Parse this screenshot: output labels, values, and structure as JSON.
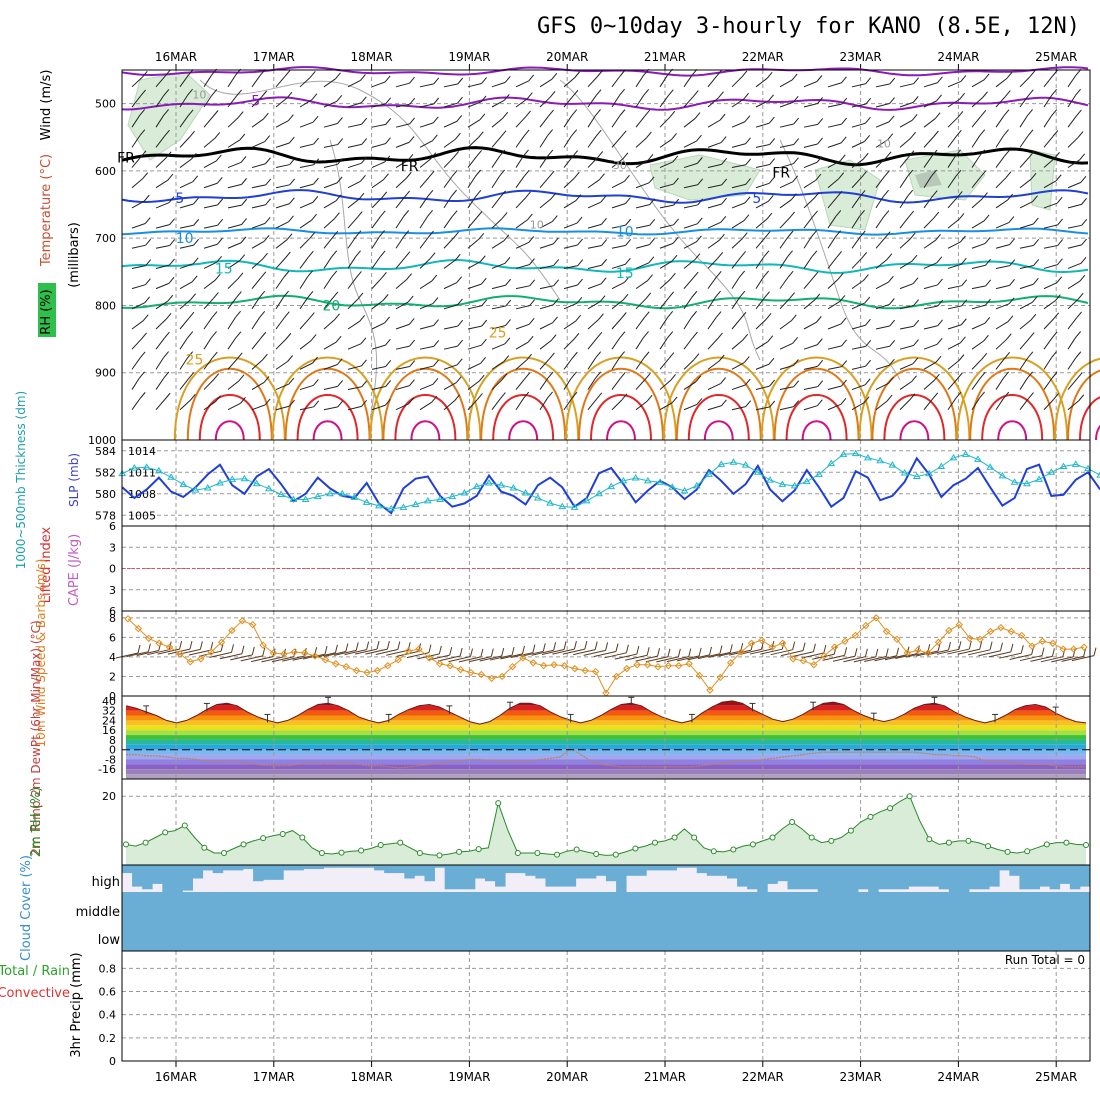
{
  "title": "GFS 0~10day 3-hourly for KANO (8.5E, 12N)",
  "dates": [
    "16MAR",
    "17MAR",
    "18MAR",
    "19MAR",
    "20MAR",
    "21MAR",
    "22MAR",
    "23MAR",
    "24MAR",
    "25MAR"
  ],
  "colors": {
    "purple": "#8b1ab8",
    "black": "#000000",
    "blue": "#1f3fd6",
    "lightblue": "#1a8fe0",
    "cyan": "#10b8b8",
    "teal": "#10b070",
    "gold": "#d8a020",
    "orange": "#e07818",
    "red": "#e02828",
    "magenta": "#d0108a",
    "rh_fill": "#d8ecd8",
    "slp": "#20b8c8",
    "thickness": "#1f3fd6",
    "wind": "#e09020",
    "rh2m": "#2a8a2a",
    "cloud": "#6aaed6",
    "cloud_bg": "#f2eef8"
  },
  "chart_data": [
    {
      "panel": "upper-air",
      "type": "contour",
      "ylabel": "(millibars)",
      "side_labels": [
        "Wind (m/s)",
        "Temperature (°C)",
        "RH (%)"
      ],
      "y_ticks": [
        500,
        600,
        700,
        800,
        900,
        1000
      ],
      "ylim": [
        1000,
        450
      ],
      "contours": [
        {
          "label": "-5",
          "color": "purple",
          "levels": [
            {
              "p": 452,
              "x": 0
            },
            {
              "p": 452,
              "x": 10
            }
          ]
        },
        {
          "label": "FR",
          "color": "black",
          "levels": [
            {
              "p": 582,
              "x": 0
            },
            {
              "p": 572,
              "x": 3
            },
            {
              "p": 590,
              "x": 5
            },
            {
              "p": 598,
              "x": 8
            },
            {
              "p": 570,
              "x": 10
            }
          ]
        },
        {
          "label": "5",
          "color": "blue",
          "p": 638
        },
        {
          "label": "10",
          "color": "lightblue",
          "p": 690
        },
        {
          "label": "15",
          "color": "cyan",
          "p": 742
        },
        {
          "label": "20",
          "color": "teal",
          "p": 795
        },
        {
          "label": "25",
          "color": "gold",
          "p": 858
        }
      ],
      "contour_labels": [
        {
          "text": "-5",
          "day": 1.3,
          "p": 495,
          "color": "purple"
        },
        {
          "text": "FR",
          "day": 0.0,
          "p": 580,
          "color": "black"
        },
        {
          "text": "FR",
          "day": 2.9,
          "p": 593,
          "color": "black"
        },
        {
          "text": "FR",
          "day": 6.7,
          "p": 602,
          "color": "black"
        },
        {
          "text": "5",
          "day": 0.55,
          "p": 640,
          "color": "blue"
        },
        {
          "text": "5",
          "day": 6.45,
          "p": 640,
          "color": "blue"
        },
        {
          "text": "10",
          "day": 0.6,
          "p": 700,
          "color": "lightblue"
        },
        {
          "text": "10",
          "day": 5.1,
          "p": 690,
          "color": "lightblue"
        },
        {
          "text": "15",
          "day": 1.0,
          "p": 745,
          "color": "cyan"
        },
        {
          "text": "15",
          "day": 5.1,
          "p": 752,
          "color": "cyan"
        },
        {
          "text": "20",
          "day": 2.1,
          "p": 800,
          "color": "teal"
        },
        {
          "text": "25",
          "day": 3.8,
          "p": 840,
          "color": "gold"
        },
        {
          "text": "25",
          "day": 0.7,
          "p": 880,
          "color": "gold"
        },
        {
          "text": "10",
          "day": 0.75,
          "p": 485,
          "color": "gray"
        },
        {
          "text": "30",
          "day": 5.05,
          "p": 590,
          "color": "gray"
        },
        {
          "text": "10",
          "day": 7.75,
          "p": 558,
          "color": "gray"
        },
        {
          "text": "10",
          "day": 4.2,
          "p": 678,
          "color": "gray"
        }
      ]
    },
    {
      "panel": "slp-thickness",
      "type": "line",
      "ylabel_left": "1000~500mb Thickness (dm)",
      "ylabel_right": "SLP (mb)",
      "left_ticks": [
        578,
        580,
        582,
        584
      ],
      "right_ticks": [
        1005,
        1008,
        1011,
        1014
      ],
      "series": [
        {
          "name": "Thickness",
          "color": "thickness",
          "values": [
            580.6,
            579.6,
            580.4,
            581.5,
            580.2,
            579.7,
            580.6,
            581.8,
            582.7,
            580.8,
            580.0,
            581.6,
            582.3,
            580.9,
            579.3,
            580.0,
            581.5,
            580.5,
            579.8,
            579.6,
            581.0,
            579.1,
            578.2,
            580.5,
            581.4,
            581.6,
            579.8,
            578.8,
            579.1,
            579.8,
            581.7,
            580.2,
            579.8,
            579.0,
            580.8,
            581.5,
            580.6,
            578.8,
            579.6,
            581.9,
            582.4,
            580.9,
            579.2,
            580.3,
            581.2,
            580.6,
            579.5,
            580.4,
            582.2,
            581.2,
            580.0,
            580.9,
            582.6,
            580.4,
            579.3,
            580.3,
            582.2,
            580.6,
            578.8,
            579.6,
            582.1,
            581.5,
            579.4,
            579.8,
            581.1,
            583.3,
            581.8,
            579.7,
            580.8,
            581.4,
            582.4,
            580.6,
            578.9,
            579.6,
            582.3,
            582.7,
            579.8,
            579.9,
            581.3,
            582.0,
            580.4
          ]
        },
        {
          "name": "SLP",
          "color": "slp",
          "values": [
            1010.8,
            1011.6,
            1011.7,
            1011.2,
            1010.3,
            1009.3,
            1008.5,
            1008.8,
            1009.5,
            1010.0,
            1010.1,
            1009.4,
            1008.7,
            1007.9,
            1007.2,
            1007.2,
            1007.6,
            1008.0,
            1008.0,
            1007.5,
            1006.8,
            1006.3,
            1005.9,
            1006.1,
            1006.5,
            1007.0,
            1007.2,
            1007.6,
            1008.1,
            1009.0,
            1009.5,
            1009.2,
            1008.8,
            1008.1,
            1007.4,
            1006.7,
            1006.2,
            1006.1,
            1007.0,
            1008.0,
            1009.0,
            1009.8,
            1010.2,
            1009.8,
            1009.6,
            1008.9,
            1008.4,
            1009.1,
            1010.7,
            1012.1,
            1012.4,
            1012.0,
            1011.0,
            1009.9,
            1009.3,
            1009.1,
            1009.7,
            1010.7,
            1012.2,
            1013.5,
            1013.6,
            1013.0,
            1012.6,
            1012.0,
            1010.9,
            1010.4,
            1010.8,
            1011.8,
            1013.0,
            1013.5,
            1012.8,
            1011.7,
            1010.5,
            1009.6,
            1009.4,
            1010.0,
            1011.0,
            1011.8,
            1012.1,
            1011.5,
            1010.6,
            1009.0,
            1007.9,
            1007.0,
            1006.2,
            1005.4,
            1004.9
          ]
        }
      ]
    },
    {
      "panel": "cape-li",
      "type": "line",
      "ylabel_left": "Lifted Index",
      "ylabel_right": "CAPE (J/kg)",
      "y_ticks": [
        6,
        3,
        0,
        -3,
        -6
      ],
      "ylim": [
        6,
        -6
      ],
      "reference_line": 0
    },
    {
      "panel": "wind10m",
      "type": "line",
      "ylabel": "10m Wind Speed & Barbs (m/s)",
      "y_ticks": [
        0,
        2,
        4,
        6,
        8
      ],
      "ylim": [
        0,
        8.7
      ],
      "series": [
        {
          "name": "Speed",
          "color": "wind",
          "values": [
            7.9,
            6.9,
            5.9,
            5.4,
            5.0,
            4.3,
            3.5,
            3.8,
            4.5,
            5.5,
            6.7,
            7.7,
            7.3,
            5.2,
            4.4,
            4.3,
            4.5,
            4.4,
            4.1,
            3.7,
            3.3,
            3.0,
            2.6,
            2.4,
            2.6,
            3.1,
            3.7,
            4.6,
            4.8,
            3.9,
            3.3,
            3.1,
            2.7,
            2.4,
            2.2,
            1.8,
            2.0,
            3.0,
            3.9,
            3.4,
            3.1,
            3.2,
            3.1,
            2.8,
            2.6,
            2.5,
            0.3,
            2.0,
            2.8,
            3.2,
            3.2,
            3.0,
            3.1,
            3.1,
            3.3,
            2.1,
            0.6,
            1.9,
            3.4,
            4.5,
            5.4,
            5.7,
            5.0,
            5.4,
            3.8,
            3.6,
            3.2,
            4.1,
            5.0,
            5.6,
            6.2,
            7.2,
            8.0,
            6.6,
            5.8,
            4.4,
            4.7,
            4.4,
            5.5,
            6.7,
            7.3,
            5.9,
            5.8,
            6.6,
            7.0,
            6.6,
            6.2,
            5.1,
            5.6,
            5.4,
            4.8,
            4.8,
            5.0
          ]
        }
      ]
    },
    {
      "panel": "temp2m",
      "type": "area",
      "ylabel": "2m Temp 2m DewPt (6hr Min/Max) (°C)",
      "y_ticks": [
        40,
        32,
        24,
        16,
        8,
        0,
        -8,
        -16
      ],
      "ylim": [
        -24,
        44
      ],
      "series": [
        {
          "name": "Temp",
          "values": [
            36,
            34,
            31,
            28,
            24,
            22,
            24,
            28,
            33,
            37,
            38,
            36,
            31,
            27,
            24,
            22,
            24,
            28,
            33,
            37,
            38,
            36,
            32,
            27,
            24,
            22,
            24,
            29,
            33,
            36,
            37,
            35,
            31,
            27,
            23,
            21,
            23,
            28,
            34,
            38,
            38,
            36,
            31,
            27,
            24,
            22,
            24,
            28,
            33,
            37,
            38,
            36,
            31,
            27,
            24,
            22,
            24,
            30,
            35,
            39,
            40,
            38,
            33,
            29,
            25,
            23,
            25,
            29,
            34,
            38,
            39,
            37,
            32,
            28,
            25,
            23,
            25,
            29,
            34,
            37,
            38,
            36,
            31,
            27,
            24,
            22,
            24,
            28,
            33,
            36,
            37,
            35,
            30,
            26,
            23,
            22
          ]
        },
        {
          "name": "DewPt",
          "values": [
            -4,
            -4,
            -5,
            -5,
            -6,
            -7,
            -7,
            -8,
            -9,
            -10,
            -10,
            -10,
            -11,
            -12,
            -13,
            -13,
            -13,
            -12,
            -11,
            -11,
            -12,
            -11,
            -11,
            -12,
            -13,
            -13,
            -14,
            -15,
            -14,
            -13,
            -12,
            -11,
            -10,
            -9,
            -8,
            -8,
            -9,
            -9,
            -10,
            -10,
            -9,
            -8,
            -7,
            -6,
            1,
            -4,
            -9,
            -12,
            -13,
            -14,
            -14,
            -14,
            -14,
            -14,
            -14,
            -14,
            -14,
            -13,
            -12,
            -11,
            -10,
            -9,
            -9,
            -8,
            -7,
            -6,
            -5,
            -4,
            -3,
            -2,
            -2,
            -2,
            -2,
            -2,
            -2,
            -2,
            -2,
            -2,
            -2,
            -3,
            -4,
            -4,
            -5,
            -5,
            -6,
            -9,
            -9,
            -10,
            -11,
            -12,
            -12,
            -12,
            -13,
            -14,
            -14,
            -14
          ]
        }
      ]
    },
    {
      "panel": "rh2m",
      "type": "area",
      "ylabel": "2m RH (%)",
      "y_ticks": [
        20
      ],
      "ylim": [
        0,
        25
      ],
      "series": [
        {
          "name": "RH",
          "values": [
            6.0,
            5.5,
            6.5,
            8.0,
            9.5,
            10.0,
            11.5,
            8.0,
            5.0,
            3.5,
            3.5,
            4.8,
            6.0,
            7.0,
            7.8,
            8.5,
            9.0,
            10.0,
            8.0,
            5.0,
            3.5,
            3.2,
            3.6,
            4.0,
            4.2,
            4.8,
            5.8,
            6.2,
            6.5,
            5.0,
            3.5,
            3.0,
            2.8,
            3.2,
            3.8,
            4.0,
            4.6,
            5.0,
            18.0,
            10.0,
            3.5,
            3.5,
            3.5,
            3.2,
            3.0,
            4.0,
            4.5,
            3.8,
            3.2,
            2.8,
            3.0,
            3.8,
            4.8,
            5.5,
            6.5,
            7.0,
            8.0,
            10.5,
            8.0,
            5.0,
            4.0,
            3.8,
            4.5,
            5.5,
            6.0,
            7.0,
            8.0,
            10.5,
            12.5,
            10.5,
            8.0,
            6.5,
            7.0,
            8.0,
            10.0,
            12.5,
            14.0,
            15.5,
            16.5,
            18.5,
            20.0,
            13.0,
            7.5,
            6.0,
            6.5,
            7.0,
            7.0,
            6.5,
            5.5,
            4.5,
            3.8,
            3.5,
            4.0,
            5.0,
            6.0,
            6.5,
            6.5,
            6.0,
            5.8
          ]
        }
      ]
    },
    {
      "panel": "cloud",
      "type": "bar",
      "ylabel": "Cloud Cover (%)",
      "levels": [
        "high",
        "middle",
        "low"
      ],
      "series": [
        {
          "name": "high",
          "values": [
            30,
            80,
            90,
            70,
            100,
            100,
            95,
            50,
            20,
            30,
            20,
            20,
            15,
            60,
            55,
            55,
            20,
            20,
            15,
            15,
            10,
            10,
            10,
            10,
            10,
            20,
            30,
            30,
            50,
            40,
            60,
            10,
            90,
            90,
            90,
            50,
            60,
            80,
            30,
            30,
            40,
            50,
            80,
            80,
            80,
            50,
            50,
            40,
            60,
            100,
            40,
            40,
            20,
            20,
            20,
            10,
            10,
            30,
            40,
            40,
            50,
            80,
            90,
            100,
            70,
            60,
            90,
            90,
            90,
            100,
            100,
            100,
            100,
            90,
            100,
            90,
            90,
            90,
            80,
            80,
            80,
            90,
            100,
            100,
            90,
            90,
            80,
            20,
            40,
            90,
            90,
            80,
            90,
            70,
            90,
            80
          ]
        }
      ]
    },
    {
      "panel": "precip",
      "type": "bar",
      "ylabel": "3hr Precip (mm)",
      "side_labels": [
        "Total / Rain",
        "Convective"
      ],
      "y_ticks": [
        0,
        0.2,
        0.4,
        0.6,
        0.8
      ],
      "ylim": [
        0,
        0.95
      ],
      "run_total_text": "Run Total = 0",
      "series": [
        {
          "name": "Total",
          "values": []
        }
      ]
    }
  ]
}
